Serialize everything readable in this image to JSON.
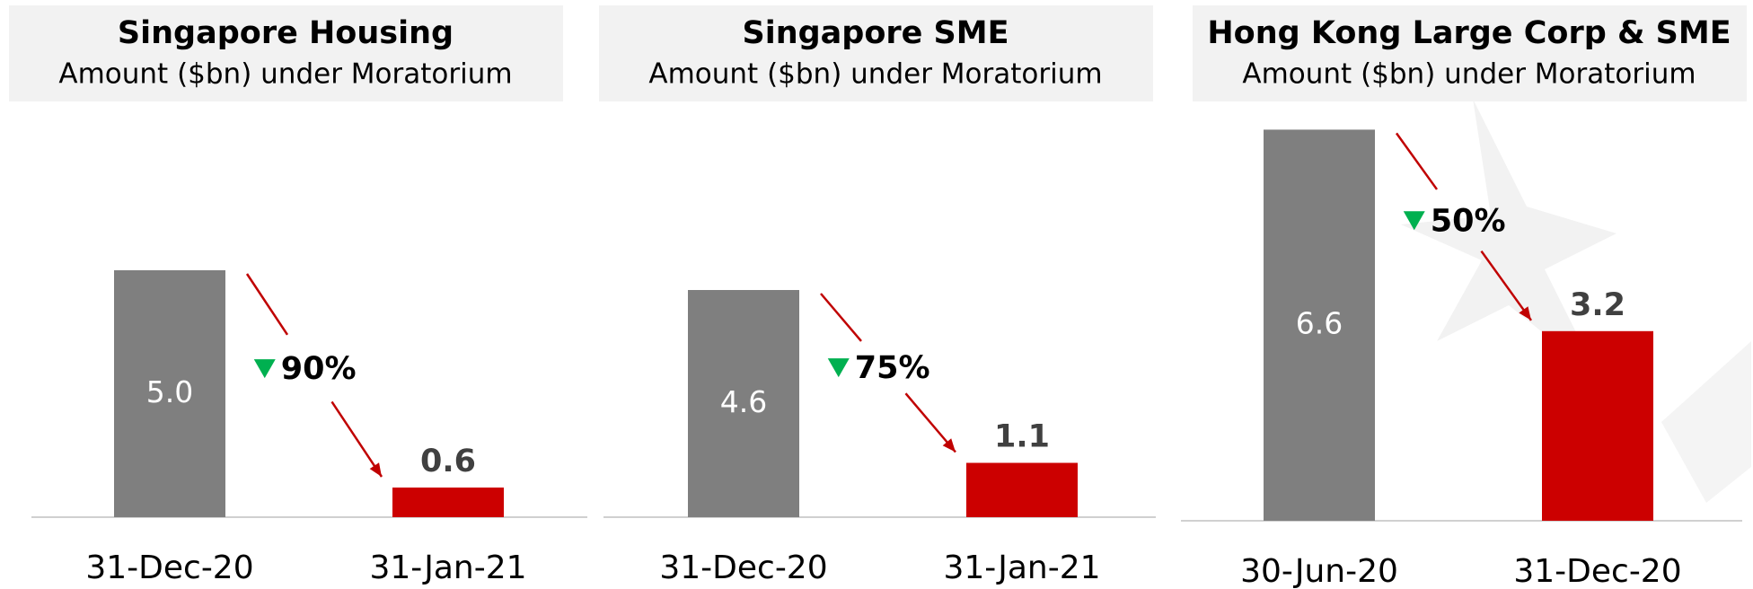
{
  "chart_data": [
    {
      "type": "bar",
      "title": "Singapore Housing",
      "subtitle": "Amount ($bn) under Moratorium",
      "categories": [
        "31-Dec-20",
        "31-Jan-21"
      ],
      "values": [
        5.0,
        0.6
      ],
      "value_labels": [
        "5.0",
        "0.6"
      ],
      "colors": [
        "#7f7f7f",
        "#cc0000"
      ],
      "annotation": "90%",
      "ylim": [
        0,
        8.4
      ]
    },
    {
      "type": "bar",
      "title": "Singapore SME",
      "subtitle": "Amount ($bn) under Moratorium",
      "categories": [
        "31-Dec-20",
        "31-Jan-21"
      ],
      "values": [
        4.6,
        1.1
      ],
      "value_labels": [
        "4.6",
        "1.1"
      ],
      "colors": [
        "#7f7f7f",
        "#cc0000"
      ],
      "annotation": "75%",
      "ylim": [
        0,
        8.4
      ]
    },
    {
      "type": "bar",
      "title": "Hong Kong Large Corp & SME",
      "subtitle": "Amount ($bn) under Moratorium",
      "categories": [
        "30-Jun-20",
        "31-Dec-20"
      ],
      "values": [
        6.6,
        3.2
      ],
      "value_labels": [
        "6.6",
        "3.2"
      ],
      "colors": [
        "#7f7f7f",
        "#cc0000"
      ],
      "annotation": "50%",
      "ylim": [
        0,
        7.0
      ]
    }
  ]
}
